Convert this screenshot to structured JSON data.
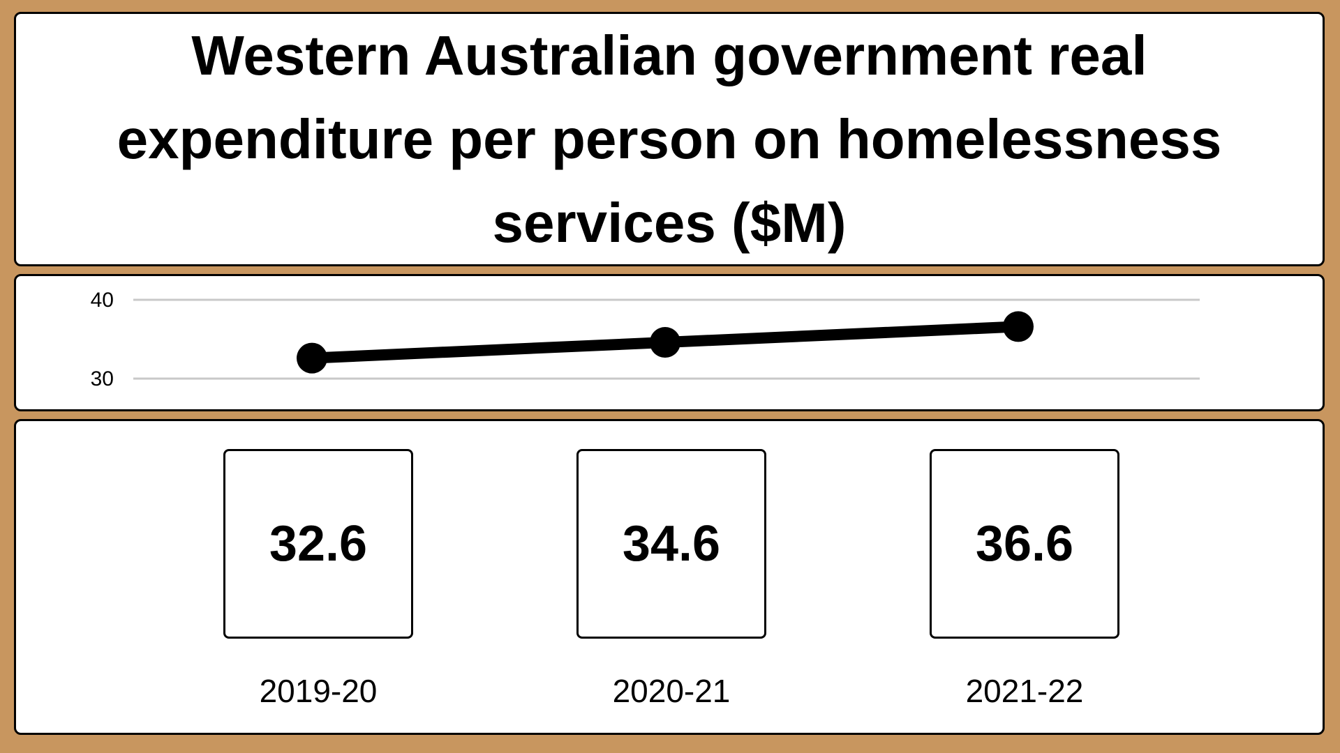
{
  "chart_data": {
    "type": "line",
    "title": "Western Australian government real expenditure per person on homelessness services ($M)",
    "categories": [
      "2019-20",
      "2020-21",
      "2021-22"
    ],
    "series": [
      {
        "values": [
          32.6,
          34.6,
          36.6
        ]
      }
    ],
    "ylim": [
      30,
      40
    ],
    "yticks": [
      {
        "value": 30,
        "label": "30"
      },
      {
        "value": 40,
        "label": "40"
      }
    ],
    "value_labels": [
      "32.6",
      "34.6",
      "36.6"
    ],
    "grid": true,
    "line_color": "#000000",
    "grid_color": "#c8c8c8"
  },
  "colors": {
    "background": "#c8965f",
    "panel": "#ffffff",
    "ink": "#000000"
  }
}
